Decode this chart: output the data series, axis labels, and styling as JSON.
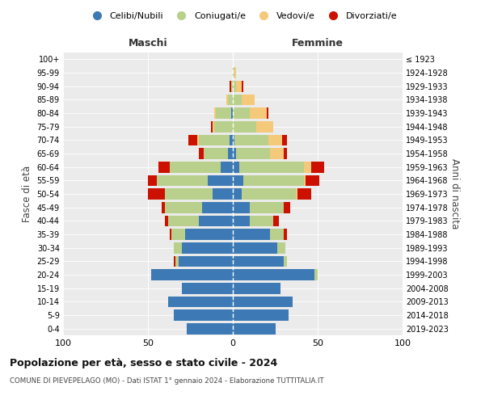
{
  "age_groups": [
    "0-4",
    "5-9",
    "10-14",
    "15-19",
    "20-24",
    "25-29",
    "30-34",
    "35-39",
    "40-44",
    "45-49",
    "50-54",
    "55-59",
    "60-64",
    "65-69",
    "70-74",
    "75-79",
    "80-84",
    "85-89",
    "90-94",
    "95-99",
    "100+"
  ],
  "birth_years": [
    "2019-2023",
    "2014-2018",
    "2009-2013",
    "2004-2008",
    "1999-2003",
    "1994-1998",
    "1989-1993",
    "1984-1988",
    "1979-1983",
    "1974-1978",
    "1969-1973",
    "1964-1968",
    "1959-1963",
    "1954-1958",
    "1949-1953",
    "1944-1948",
    "1939-1943",
    "1934-1938",
    "1929-1933",
    "1924-1928",
    "≤ 1923"
  ],
  "male": {
    "celibi": [
      27,
      35,
      38,
      30,
      48,
      32,
      30,
      28,
      20,
      18,
      12,
      15,
      7,
      3,
      2,
      0,
      1,
      0,
      0,
      0,
      0
    ],
    "coniugati": [
      0,
      0,
      0,
      0,
      0,
      2,
      5,
      8,
      18,
      22,
      28,
      30,
      30,
      14,
      18,
      11,
      9,
      3,
      1,
      0,
      0
    ],
    "vedovi": [
      0,
      0,
      0,
      0,
      0,
      0,
      0,
      0,
      0,
      0,
      0,
      0,
      0,
      0,
      1,
      1,
      1,
      1,
      0,
      0,
      0
    ],
    "divorziati": [
      0,
      0,
      0,
      0,
      0,
      1,
      0,
      1,
      2,
      2,
      10,
      5,
      7,
      3,
      5,
      1,
      0,
      0,
      1,
      0,
      0
    ]
  },
  "female": {
    "nubili": [
      25,
      33,
      35,
      28,
      48,
      30,
      26,
      22,
      10,
      10,
      5,
      6,
      4,
      2,
      1,
      0,
      0,
      0,
      0,
      0,
      0
    ],
    "coniugate": [
      0,
      0,
      0,
      0,
      2,
      2,
      5,
      8,
      14,
      20,
      32,
      36,
      38,
      20,
      20,
      14,
      10,
      5,
      2,
      1,
      0
    ],
    "vedove": [
      0,
      0,
      0,
      0,
      0,
      0,
      0,
      0,
      0,
      0,
      1,
      1,
      4,
      8,
      8,
      10,
      10,
      8,
      3,
      1,
      0
    ],
    "divorziate": [
      0,
      0,
      0,
      0,
      0,
      0,
      0,
      2,
      3,
      4,
      8,
      8,
      8,
      2,
      3,
      0,
      1,
      0,
      1,
      0,
      0
    ]
  },
  "colors": {
    "celibi": "#3d7ab5",
    "coniugati": "#b8d08c",
    "vedovi": "#f5c97a",
    "divorziati": "#cc1100"
  },
  "title": "Popolazione per età, sesso e stato civile - 2024",
  "subtitle": "COMUNE DI PIEVEPELAGO (MO) - Dati ISTAT 1° gennaio 2024 - Elaborazione TUTTITALIA.IT",
  "xlabel_left": "Maschi",
  "xlabel_right": "Femmine",
  "ylabel": "Fasce di età",
  "ylabel_right": "Anni di nascita",
  "xlim": 100,
  "legend_labels": [
    "Celibi/Nubili",
    "Coniugati/e",
    "Vedovi/e",
    "Divorziati/e"
  ],
  "plot_bg": "#ebebeb",
  "fig_bg": "#ffffff"
}
